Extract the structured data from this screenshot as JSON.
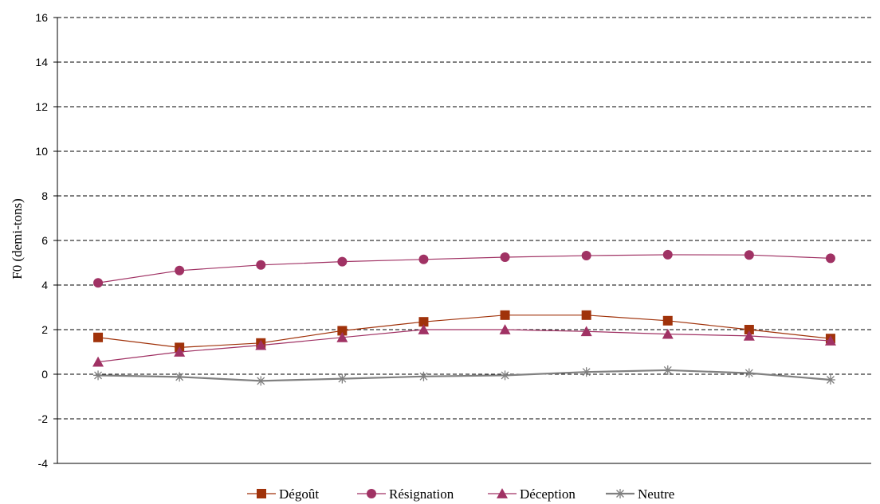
{
  "chart_data": {
    "type": "line",
    "title": "",
    "xlabel": "",
    "ylabel": "F0 (demi-tons)",
    "ylim": [
      -4,
      16
    ],
    "yticks": [
      "16",
      "14",
      "12",
      "10",
      "8",
      "6",
      "4",
      "2",
      "0",
      "-2",
      "-4"
    ],
    "grid": "horizontal dashed",
    "legend_position": "bottom",
    "x": [
      1,
      2,
      3,
      4,
      5,
      6,
      7,
      8,
      9,
      10
    ],
    "series": [
      {
        "name": "Dégoût",
        "color": "#a0320a",
        "marker": "square",
        "values": [
          1.65,
          1.2,
          1.4,
          1.95,
          2.35,
          2.65,
          2.65,
          2.4,
          2.0,
          1.6
        ]
      },
      {
        "name": "Résignation",
        "color": "#a03264",
        "marker": "circle",
        "values": [
          4.1,
          4.65,
          4.9,
          5.05,
          5.15,
          5.25,
          5.32,
          5.36,
          5.35,
          5.2
        ]
      },
      {
        "name": "Déception",
        "color": "#a03264",
        "marker": "triangle",
        "values": [
          0.55,
          1.0,
          1.3,
          1.65,
          2.0,
          2.0,
          1.92,
          1.8,
          1.72,
          1.5
        ]
      },
      {
        "name": "Neutre",
        "color": "#808080",
        "marker": "star",
        "values": [
          -0.05,
          -0.12,
          -0.3,
          -0.2,
          -0.1,
          -0.05,
          0.1,
          0.18,
          0.05,
          -0.25
        ]
      }
    ]
  }
}
